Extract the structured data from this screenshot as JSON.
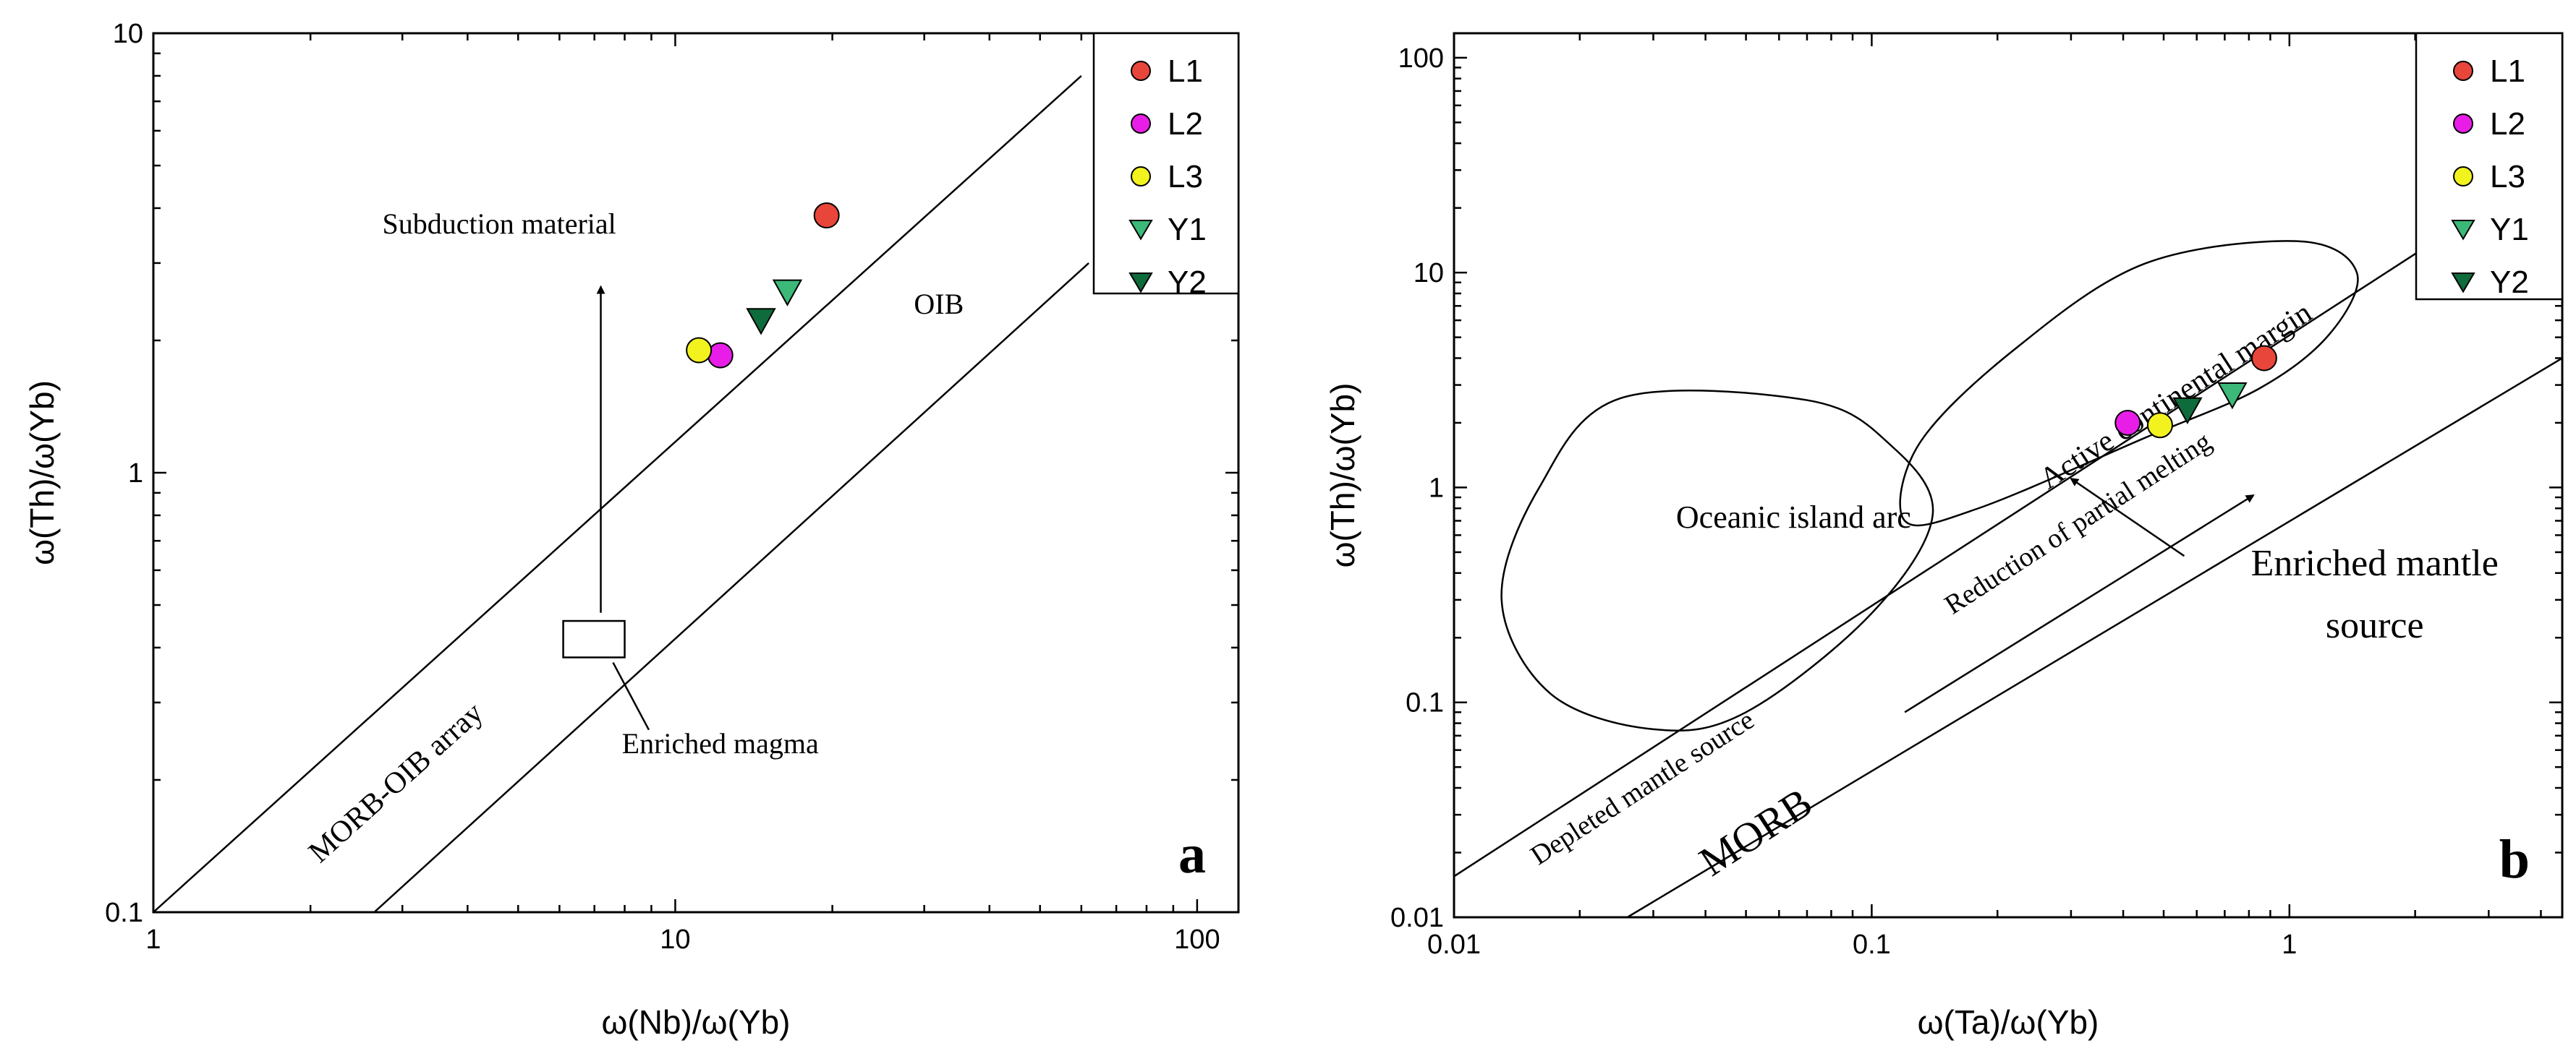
{
  "chart_data": [
    {
      "id": "a",
      "type": "scatter",
      "panel_label": "a",
      "xscale": "log",
      "yscale": "log",
      "xlim": [
        1,
        120
      ],
      "ylim": [
        0.1,
        10
      ],
      "xlabel": "ω(Nb)/ω(Yb)",
      "ylabel": "ω(Th)/ω(Yb)",
      "xticks": [
        {
          "v": 1,
          "label": "1"
        },
        {
          "v": 10,
          "label": "10"
        },
        {
          "v": 100,
          "label": "100"
        }
      ],
      "yticks": [
        {
          "v": 0.1,
          "label": "0.1"
        },
        {
          "v": 1,
          "label": "1"
        },
        {
          "v": 10,
          "label": "10"
        }
      ],
      "boundary_lines": [
        {
          "name": "upper-array-line",
          "points": [
            [
              1,
              0.1
            ],
            [
              60,
              8
            ]
          ]
        },
        {
          "name": "lower-array-line",
          "points": [
            [
              2.65,
              0.1
            ],
            [
              62,
              3.0
            ]
          ]
        }
      ],
      "enriched_box": {
        "x0": 6.1,
        "x1": 8.0,
        "y0": 0.38,
        "y1": 0.46
      },
      "subduction_arrow": {
        "x": 7.2,
        "from": 0.48,
        "to": 2.65
      },
      "annotation_pointer": {
        "from": [
          7.6,
          0.37
        ],
        "to": [
          8.9,
          0.26
        ]
      },
      "series": [
        {
          "name": "L1",
          "marker": "circle",
          "color": "#e8463a",
          "points": [
            [
              19.5,
              3.85
            ]
          ]
        },
        {
          "name": "L2",
          "marker": "circle",
          "color": "#e81ee8",
          "points": [
            [
              12.2,
              1.85
            ]
          ]
        },
        {
          "name": "L3",
          "marker": "circle",
          "color": "#f2f21e",
          "points": [
            [
              11.1,
              1.9
            ]
          ]
        },
        {
          "name": "Y1",
          "marker": "triangle-down",
          "color": "#3cb878",
          "points": [
            [
              16.4,
              2.58
            ]
          ]
        },
        {
          "name": "Y2",
          "marker": "triangle-down",
          "color": "#0e6b3c",
          "points": [
            [
              14.6,
              2.22
            ]
          ]
        }
      ],
      "annotations": [
        {
          "key": "subduction",
          "text": "Subduction material",
          "x": 4.6,
          "y": 3.5,
          "anchor": "middle",
          "size": 40,
          "rotate": false
        },
        {
          "key": "oib",
          "text": "OIB",
          "x": 32,
          "y": 2.3,
          "anchor": "middle",
          "size": 40,
          "rotate": false
        },
        {
          "key": "enriched",
          "text": "Enriched magma",
          "x": 12.2,
          "y": 0.23,
          "anchor": "middle",
          "size": 40,
          "rotate": false
        },
        {
          "key": "array",
          "text": "MORB-OIB array",
          "x": 3.0,
          "y": 0.19,
          "anchor": "middle",
          "size": 42,
          "rotate": true
        }
      ],
      "legend_position": "top-right"
    },
    {
      "id": "b",
      "type": "scatter",
      "panel_label": "b",
      "xscale": "log",
      "yscale": "log",
      "xlim": [
        0.01,
        4.5
      ],
      "ylim": [
        0.01,
        130
      ],
      "xlabel": "ω(Ta)/ω(Yb)",
      "ylabel": "ω(Th)/ω(Yb)",
      "xticks": [
        {
          "v": 0.01,
          "label": "0.01"
        },
        {
          "v": 0.1,
          "label": "0.1"
        },
        {
          "v": 1,
          "label": "1"
        }
      ],
      "yticks": [
        {
          "v": 0.01,
          "label": "0.01"
        },
        {
          "v": 0.1,
          "label": "0.1"
        },
        {
          "v": 1,
          "label": "1"
        },
        {
          "v": 10,
          "label": "10"
        },
        {
          "v": 100,
          "label": "100"
        }
      ],
      "boundary_lines": [
        {
          "name": "upper-morb-line",
          "points": [
            [
              0.01,
              0.0155
            ],
            [
              2.1,
              13
            ]
          ]
        },
        {
          "name": "lower-morb-line",
          "points": [
            [
              0.026,
              0.01
            ],
            [
              4.5,
              4.0
            ]
          ]
        }
      ],
      "fields": [
        {
          "name": "oceanic-island-arc-field",
          "points": [
            [
              0.025,
              2.6
            ],
            [
              0.07,
              2.55
            ],
            [
              0.11,
              1.6
            ],
            [
              0.14,
              0.75
            ],
            [
              0.1,
              0.26
            ],
            [
              0.05,
              0.09
            ],
            [
              0.03,
              0.075
            ],
            [
              0.017,
              0.11
            ],
            [
              0.013,
              0.3
            ],
            [
              0.016,
              1.0
            ]
          ]
        },
        {
          "name": "active-continental-margin-field",
          "points": [
            [
              0.22,
              4.4
            ],
            [
              0.45,
              11
            ],
            [
              1.05,
              14
            ],
            [
              1.45,
              10
            ],
            [
              1.25,
              5.2
            ],
            [
              0.85,
              2.9
            ],
            [
              0.45,
              1.7
            ],
            [
              0.18,
              0.8
            ],
            [
              0.12,
              0.7
            ],
            [
              0.13,
              1.6
            ]
          ]
        }
      ],
      "melting_arrow": {
        "from": [
          0.12,
          0.09
        ],
        "to": [
          0.82,
          0.92
        ]
      },
      "enriched_arrow": {
        "from": [
          0.56,
          0.48
        ],
        "to": [
          0.3,
          1.1
        ]
      },
      "series": [
        {
          "name": "L1",
          "marker": "circle",
          "color": "#e8463a",
          "points": [
            [
              0.87,
              4.0
            ]
          ]
        },
        {
          "name": "L2",
          "marker": "circle",
          "color": "#e81ee8",
          "points": [
            [
              0.41,
              2.0
            ]
          ]
        },
        {
          "name": "L3",
          "marker": "circle",
          "color": "#f2f21e",
          "points": [
            [
              0.49,
              1.95
            ]
          ]
        },
        {
          "name": "Y1",
          "marker": "triangle-down",
          "color": "#3cb878",
          "points": [
            [
              0.73,
              2.7
            ]
          ]
        },
        {
          "name": "Y2",
          "marker": "triangle-down",
          "color": "#0e6b3c",
          "points": [
            [
              0.57,
              2.3
            ]
          ]
        }
      ],
      "annotations": [
        {
          "key": "island_arc",
          "text": "Oceanic island arc",
          "x": 0.065,
          "y": 0.65,
          "anchor": "middle",
          "size": 44,
          "rotate": false
        },
        {
          "key": "continental",
          "text": "Active continental margin",
          "x": 0.55,
          "y": 2.45,
          "anchor": "middle",
          "size": 42,
          "rotate": true
        },
        {
          "key": "partial_melting",
          "text": "Reduction of partial melting",
          "x": 0.32,
          "y": 0.63,
          "anchor": "middle",
          "size": 38,
          "rotate": true
        },
        {
          "key": "depleted",
          "text": "Depleted mantle source",
          "x": 0.029,
          "y": 0.037,
          "anchor": "middle",
          "size": 38,
          "rotate": true
        },
        {
          "key": "morb",
          "text": "MORB",
          "x": 0.055,
          "y": 0.022,
          "anchor": "middle",
          "size": 58,
          "rotate": true
        },
        {
          "key": "enriched_1",
          "text": "Enriched mantle",
          "x": 1.6,
          "y": 0.39,
          "anchor": "middle",
          "size": 52,
          "rotate": false
        },
        {
          "key": "enriched_2",
          "text": "source",
          "x": 1.6,
          "y": 0.2,
          "anchor": "middle",
          "size": 52,
          "rotate": false
        }
      ],
      "legend_position": "top-right"
    }
  ]
}
